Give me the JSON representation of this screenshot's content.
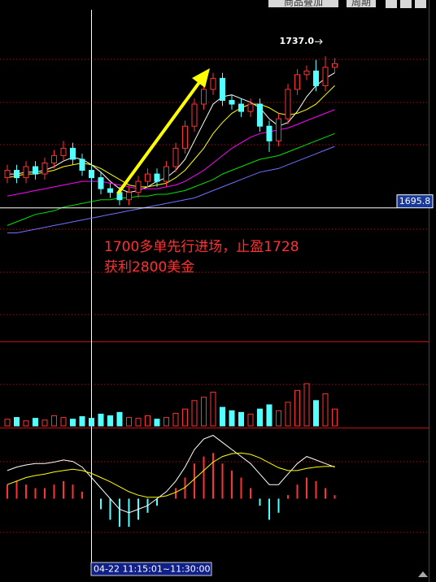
{
  "toolbar": {
    "items": [
      "商品叠加",
      "周期"
    ]
  },
  "chart_data": [
    {
      "type": "candlestick",
      "annotations": [
        "1700多单先行进场，止盈1728",
        "获利2800美金"
      ],
      "high_label": {
        "value": 1737,
        "label": "1737.0"
      },
      "price_label": 1695.8,
      "cursor_label": "04-22 11:15:01~11:30:00",
      "ylim": [
        1659.5,
        1749.2
      ],
      "up_color": "#ff3232",
      "down_color": "#54ffff",
      "open": [
        1704,
        1706,
        1704,
        1707,
        1705,
        1708,
        1710,
        1712,
        1709,
        1706,
        1704,
        1701,
        1700,
        1698,
        1700,
        1703,
        1705,
        1703,
        1707,
        1712,
        1718,
        1724,
        1728,
        1731,
        1725,
        1724,
        1722,
        1724,
        1718,
        1714,
        1720,
        1728,
        1732,
        1733,
        1729,
        1734
      ],
      "high": [
        1707.5,
        1707.5,
        1708.5,
        1708.5,
        1709.5,
        1711.5,
        1714,
        1713.5,
        1710.5,
        1707.5,
        1705.5,
        1702.5,
        1701.5,
        1701.5,
        1704.5,
        1706.5,
        1706.5,
        1708.5,
        1713.5,
        1719.5,
        1725.5,
        1729.5,
        1732.5,
        1732.5,
        1726.5,
        1725.5,
        1725.5,
        1725.5,
        1719.5,
        1721.5,
        1729.5,
        1733.5,
        1734.5,
        1736,
        1737,
        1736.5
      ],
      "low": [
        1702.5,
        1702.5,
        1702.5,
        1703.5,
        1703.5,
        1706.5,
        1708.5,
        1707.5,
        1704.5,
        1702.5,
        1699.5,
        1698.5,
        1696.5,
        1696.5,
        1698.5,
        1701.5,
        1701.5,
        1701.5,
        1705.5,
        1710.5,
        1716.5,
        1722.5,
        1726.5,
        1723.5,
        1722.5,
        1720.5,
        1720.5,
        1716.5,
        1711,
        1712.5,
        1718.5,
        1726.5,
        1730.5,
        1727.5,
        1727.5,
        1732.5
      ],
      "close": [
        1706,
        1704,
        1707,
        1705,
        1708,
        1710,
        1712,
        1709,
        1706,
        1704,
        1701,
        1700,
        1698,
        1700,
        1703,
        1705,
        1703,
        1707,
        1712,
        1718,
        1724,
        1728,
        1731,
        1725,
        1724,
        1722,
        1724,
        1718,
        1714,
        1720,
        1728,
        1732,
        1733,
        1729,
        1734,
        1735
      ],
      "series": [
        {
          "color": "#ffffff",
          "values": [
            1705,
            1705,
            1705.5,
            1705.5,
            1706,
            1707,
            1708.5,
            1709.5,
            1709,
            1707.5,
            1705.5,
            1703,
            1701,
            1700,
            1700.5,
            1701.5,
            1703,
            1704,
            1706,
            1709,
            1714,
            1719,
            1724,
            1726,
            1726.5,
            1725.5,
            1724.5,
            1723,
            1720,
            1718,
            1719,
            1722,
            1726,
            1729,
            1731,
            1732.5
          ]
        },
        {
          "color": "#ffff00",
          "values": [
            1704,
            1704.5,
            1705,
            1705,
            1705.5,
            1706,
            1707,
            1707.5,
            1708,
            1707.5,
            1706.5,
            1705,
            1703.5,
            1702,
            1701.5,
            1701.5,
            1702,
            1702.5,
            1704,
            1706,
            1709,
            1712,
            1716,
            1719,
            1721.5,
            1723,
            1724,
            1724,
            1723,
            1721.5,
            1721,
            1721.5,
            1722.5,
            1724,
            1726.5,
            1729
          ]
        },
        {
          "color": "#ff00ff",
          "values": [
            1699,
            1699.5,
            1700,
            1700.5,
            1701,
            1701.5,
            1702,
            1702.5,
            1703,
            1703,
            1703,
            1702.5,
            1702,
            1701.5,
            1701,
            1701,
            1701,
            1701.5,
            1702,
            1703,
            1704.5,
            1706,
            1708,
            1710,
            1712,
            1713.5,
            1715,
            1716,
            1716.5,
            1717,
            1717.5,
            1718.5,
            1719.5,
            1720.5,
            1721.5,
            1722.5
          ]
        },
        {
          "color": "#00e000",
          "values": [
            1691,
            1692,
            1693,
            1694,
            1694.5,
            1695,
            1696,
            1696.5,
            1697,
            1697.5,
            1698,
            1698,
            1698.5,
            1698.5,
            1699,
            1699,
            1699.5,
            1699.5,
            1700,
            1700.5,
            1701.5,
            1702.5,
            1703.5,
            1705,
            1706,
            1707,
            1708,
            1709,
            1709.5,
            1710,
            1711,
            1712,
            1713,
            1714,
            1715,
            1716
          ]
        },
        {
          "color": "#7070ff",
          "values": [
            1689,
            1689,
            1689.5,
            1690,
            1690.5,
            1691,
            1691.5,
            1692,
            1692.5,
            1693,
            1693.5,
            1694,
            1694.5,
            1695,
            1695.5,
            1696,
            1696.5,
            1697,
            1697.5,
            1698,
            1698.5,
            1699.5,
            1700.5,
            1701.5,
            1702.5,
            1703.5,
            1704.5,
            1705.5,
            1706,
            1706.5,
            1707.5,
            1708.5,
            1709.5,
            1710.5,
            1711.5,
            1712.5
          ]
        }
      ]
    },
    {
      "type": "bar",
      "ylim": [
        0,
        100
      ],
      "values": [
        8,
        10,
        6,
        9,
        7,
        12,
        10,
        8,
        11,
        9,
        14,
        12,
        16,
        10,
        9,
        12,
        8,
        10,
        15,
        20,
        30,
        34,
        40,
        22,
        18,
        16,
        14,
        20,
        25,
        18,
        28,
        42,
        50,
        30,
        38,
        20
      ]
    },
    {
      "type": "macd",
      "ylim": [
        -10,
        10
      ],
      "values": [
        2,
        2.5,
        2,
        1.5,
        1.5,
        2,
        2.5,
        2,
        1,
        0,
        -1.5,
        -3,
        -4,
        -4,
        -3,
        -2,
        -1,
        0,
        1.5,
        3,
        5,
        6,
        6.5,
        5,
        4,
        3,
        1.5,
        -1,
        -3,
        -2,
        0.5,
        2,
        3,
        2.5,
        1.5,
        0.5
      ],
      "series": [
        {
          "color": "#ffffff",
          "values": [
            4,
            4.5,
            4.8,
            5,
            5,
            5.2,
            5.5,
            5.3,
            4.5,
            3,
            1.5,
            0,
            -1.5,
            -2,
            -1.5,
            -1,
            0,
            1,
            2.5,
            4.5,
            7,
            8.5,
            9,
            8,
            7,
            6,
            5,
            3.5,
            2,
            2,
            3.5,
            5,
            6,
            5.5,
            5,
            4.5
          ]
        },
        {
          "color": "#ffff00",
          "values": [
            2,
            2.5,
            3,
            3.3,
            3.5,
            3.8,
            4,
            4.2,
            4,
            3.6,
            3,
            2.4,
            1.7,
            1,
            0.5,
            0.2,
            0.2,
            0.4,
            0.9,
            1.6,
            2.8,
            4,
            5.2,
            6,
            6.4,
            6.5,
            6.3,
            5.8,
            5.1,
            4.4,
            4,
            4,
            4.3,
            4.5,
            4.6,
            4.6
          ]
        }
      ]
    }
  ]
}
